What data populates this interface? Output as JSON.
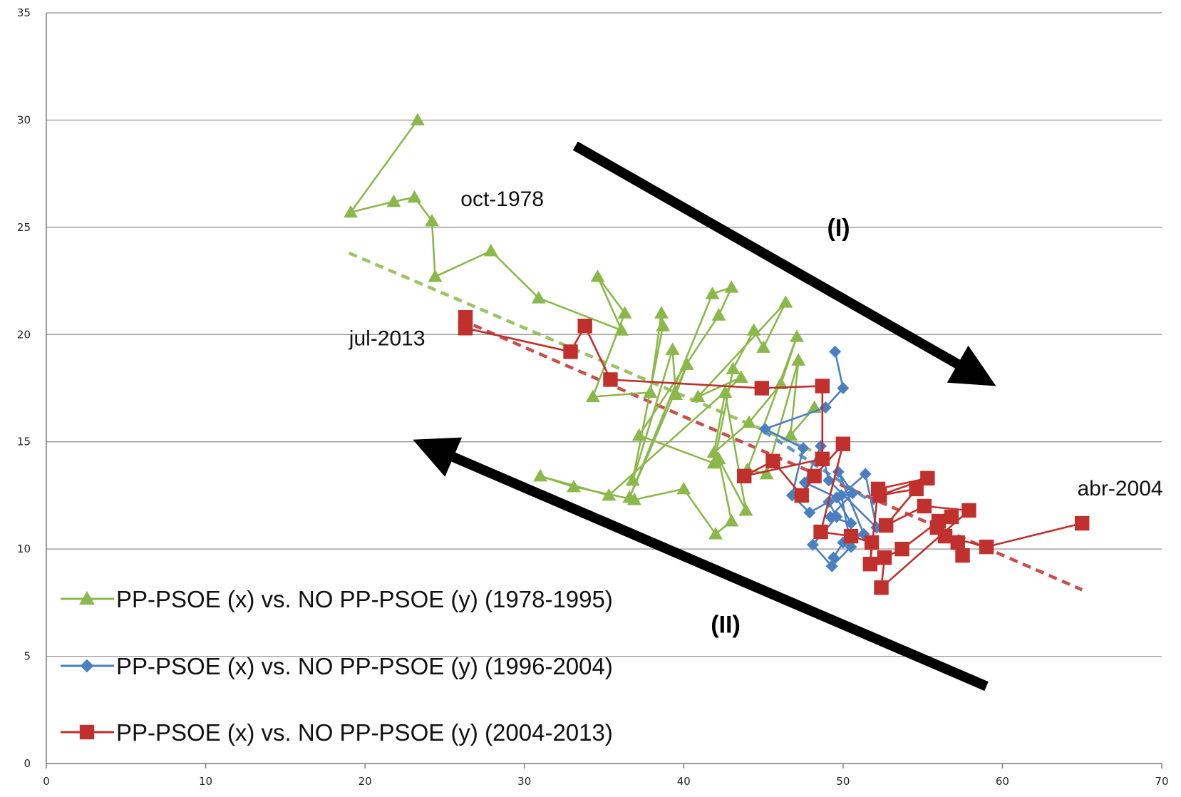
{
  "chart_data": {
    "type": "scatter",
    "xlim": [
      0,
      70
    ],
    "ylim": [
      0,
      35
    ],
    "x_ticks": [
      0,
      10,
      20,
      30,
      40,
      50,
      60,
      70
    ],
    "y_ticks": [
      0,
      5,
      10,
      15,
      20,
      25,
      30,
      35
    ],
    "grid": "horizontal",
    "legend_position": "bottom-left",
    "colors": {
      "green": "#8bb84a",
      "blue": "#4a7fc1",
      "red": "#c0302c",
      "arrow": "#000000"
    },
    "series": [
      {
        "name": "PP-PSOE (x) vs. NO PP-PSOE (y) (1978-1995)",
        "color": "#8bb84a",
        "marker": "triangle",
        "points": [
          [
            23.3,
            30.0
          ],
          [
            19.1,
            25.7
          ],
          [
            21.8,
            26.2
          ],
          [
            23.1,
            26.4
          ],
          [
            24.2,
            25.3
          ],
          [
            24.4,
            22.7
          ],
          [
            27.9,
            23.9
          ],
          [
            30.9,
            21.7
          ],
          [
            36.1,
            20.2
          ],
          [
            34.6,
            22.7
          ],
          [
            36.3,
            21.0
          ],
          [
            34.3,
            17.1
          ],
          [
            37.9,
            17.3
          ],
          [
            38.6,
            21.0
          ],
          [
            38.7,
            20.4
          ],
          [
            36.8,
            13.2
          ],
          [
            39.3,
            19.3
          ],
          [
            39.5,
            17.2
          ],
          [
            40.2,
            18.6
          ],
          [
            36.6,
            12.4
          ],
          [
            41.8,
            21.9
          ],
          [
            43.0,
            22.2
          ],
          [
            42.2,
            20.9
          ],
          [
            37.2,
            15.3
          ],
          [
            41.9,
            14.0
          ],
          [
            43.1,
            18.4
          ],
          [
            44.4,
            20.2
          ],
          [
            45.0,
            19.4
          ],
          [
            46.4,
            21.5
          ],
          [
            40.9,
            17.1
          ],
          [
            43.6,
            18.0
          ],
          [
            35.3,
            12.5
          ],
          [
            31.0,
            13.4
          ],
          [
            33.1,
            12.9
          ],
          [
            36.9,
            12.3
          ],
          [
            40.0,
            12.8
          ],
          [
            42.0,
            10.7
          ],
          [
            43.0,
            11.3
          ],
          [
            42.2,
            14.2
          ],
          [
            43.9,
            11.8
          ],
          [
            42.6,
            17.3
          ],
          [
            41.9,
            14.5
          ],
          [
            44.1,
            15.9
          ],
          [
            46.1,
            17.7
          ],
          [
            47.1,
            19.9
          ],
          [
            44.0,
            13.7
          ],
          [
            45.2,
            13.5
          ],
          [
            47.2,
            18.8
          ],
          [
            46.7,
            15.3
          ],
          [
            48.2,
            16.6
          ]
        ]
      },
      {
        "name": "PP-PSOE (x) vs. NO PP-PSOE (y) (1996-2004)",
        "color": "#4a7fc1",
        "marker": "diamond",
        "points": [
          [
            49.5,
            19.2
          ],
          [
            50.0,
            17.5
          ],
          [
            48.9,
            16.6
          ],
          [
            45.1,
            15.6
          ],
          [
            47.5,
            14.7
          ],
          [
            46.8,
            12.5
          ],
          [
            47.9,
            11.7
          ],
          [
            49.1,
            12.2
          ],
          [
            49.6,
            11.5
          ],
          [
            48.1,
            10.2
          ],
          [
            49.3,
            9.2
          ],
          [
            50.5,
            10.1
          ],
          [
            49.9,
            12.5
          ],
          [
            51.4,
            13.5
          ],
          [
            52.1,
            11.0
          ],
          [
            49.1,
            13.2
          ],
          [
            48.6,
            14.8
          ],
          [
            47.6,
            13.1
          ],
          [
            49.6,
            12.4
          ],
          [
            50.5,
            11.2
          ],
          [
            49.2,
            11.5
          ],
          [
            50.6,
            12.6
          ],
          [
            49.7,
            13.6
          ],
          [
            51.3,
            10.7
          ],
          [
            50.0,
            10.3
          ],
          [
            49.4,
            9.6
          ]
        ]
      },
      {
        "name": "PP-PSOE (x) vs. NO PP-PSOE (y) (2004-2013)",
        "color": "#c0302c",
        "marker": "square",
        "points": [
          [
            26.3,
            20.8
          ],
          [
            26.3,
            20.3
          ],
          [
            32.9,
            19.2
          ],
          [
            33.8,
            20.4
          ],
          [
            35.4,
            17.9
          ],
          [
            44.9,
            17.5
          ],
          [
            48.7,
            17.6
          ],
          [
            48.7,
            14.2
          ],
          [
            43.8,
            13.4
          ],
          [
            45.6,
            14.1
          ],
          [
            47.4,
            12.5
          ],
          [
            48.2,
            13.4
          ],
          [
            50.0,
            14.9
          ],
          [
            48.6,
            10.8
          ],
          [
            50.5,
            10.6
          ],
          [
            51.8,
            10.3
          ],
          [
            51.7,
            9.3
          ],
          [
            52.2,
            12.8
          ],
          [
            55.3,
            13.3
          ],
          [
            52.3,
            12.5
          ],
          [
            54.6,
            12.8
          ],
          [
            52.7,
            11.1
          ],
          [
            55.1,
            12.0
          ],
          [
            57.9,
            11.8
          ],
          [
            52.4,
            8.2
          ],
          [
            52.6,
            9.6
          ],
          [
            53.7,
            10.0
          ],
          [
            56.0,
            11.3
          ],
          [
            56.8,
            11.5
          ],
          [
            55.9,
            11.0
          ],
          [
            57.2,
            10.3
          ],
          [
            57.5,
            9.7
          ],
          [
            56.4,
            10.6
          ],
          [
            59.0,
            10.1
          ],
          [
            65.0,
            11.2
          ]
        ]
      }
    ],
    "trendlines": [
      {
        "color": "#8bb84a",
        "from": [
          19.0,
          23.8
        ],
        "to": [
          48.0,
          14.6
        ]
      },
      {
        "color": "#c0302c",
        "from": [
          26.0,
          20.7
        ],
        "to": [
          65.0,
          8.1
        ]
      },
      {
        "color": "#4a7fc1",
        "from": [
          45.0,
          15.5
        ],
        "to": [
          52.0,
          12.1
        ]
      }
    ],
    "arrows": [
      {
        "from": [
          33.2,
          28.8
        ],
        "to": [
          59.6,
          17.6
        ]
      },
      {
        "from": [
          59.0,
          3.6
        ],
        "to": [
          23.0,
          15.1
        ]
      }
    ],
    "annotations": [
      {
        "text": "oct-1978",
        "at": [
          26.0,
          26.0
        ],
        "style": "normal"
      },
      {
        "text": "jul-2013",
        "at": [
          19.0,
          19.5
        ],
        "style": "normal"
      },
      {
        "text": "abr-2004",
        "at": [
          64.7,
          12.5
        ],
        "style": "normal"
      },
      {
        "text": "(I)",
        "at": [
          49.0,
          24.6
        ],
        "style": "bold"
      },
      {
        "text": "(II)",
        "at": [
          41.7,
          6.1
        ],
        "style": "bold"
      }
    ]
  }
}
